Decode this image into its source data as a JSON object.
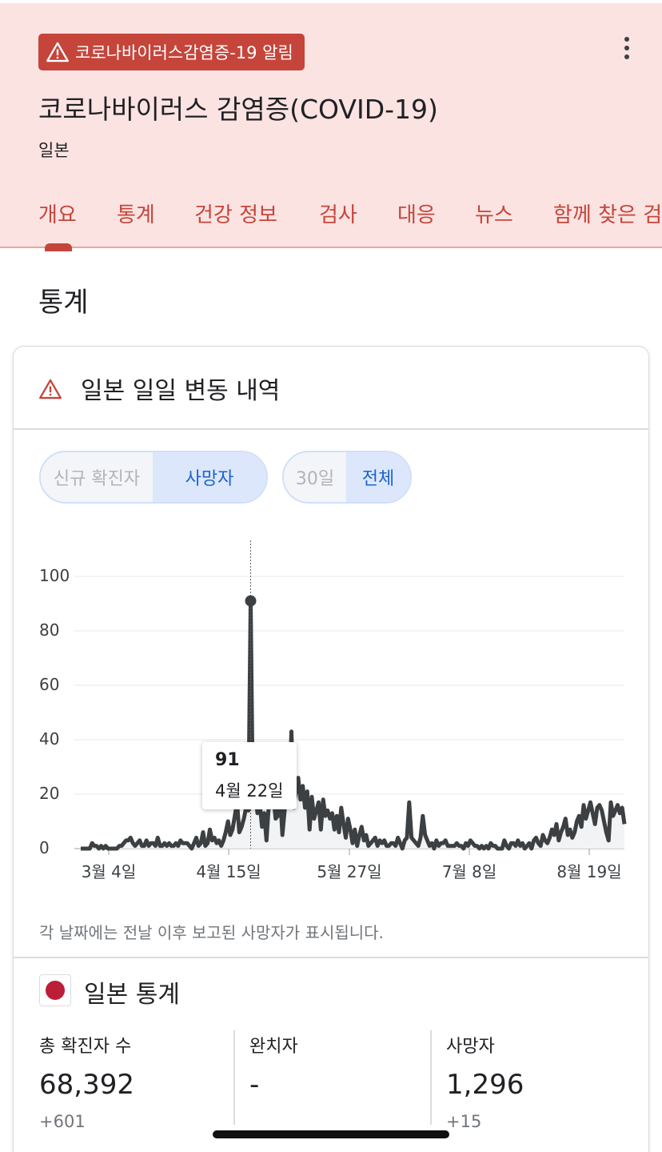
{
  "header": {
    "alert_label": "코로나바이러스감염증-19 알림",
    "title": "코로나바이러스 감염증(COVID-19)",
    "subtitle": "일본",
    "tabs": [
      "개요",
      "통계",
      "건강 정보",
      "검사",
      "대응",
      "뉴스",
      "함께 찾은 검색어"
    ]
  },
  "section_title": "통계",
  "card": {
    "title": "일본 일일 변동 내역",
    "metric_toggle": {
      "options": [
        "신규 확진자",
        "사망자"
      ],
      "selected": "사망자"
    },
    "range_toggle": {
      "options": [
        "30일",
        "전체"
      ],
      "selected": "전체"
    },
    "tooltip": {
      "value": "91",
      "date": "4월 22일"
    },
    "footnote": "각 날짜에는 전날 이후 보고된 사망자가 표시됩니다."
  },
  "stats": {
    "title": "일본 통계",
    "items": [
      {
        "label": "총 확진자 수",
        "value": "68,392",
        "delta": "+601"
      },
      {
        "label": "완치자",
        "value": "-",
        "delta": ""
      },
      {
        "label": "사망자",
        "value": "1,296",
        "delta": "+15"
      }
    ]
  },
  "colors": {
    "accent": "#c5453b",
    "header_bg": "#fbe3e2",
    "line": "#3c4043",
    "toggle_selected": "#1a62d2"
  },
  "chart_data": {
    "type": "line",
    "title": "",
    "xlabel": "",
    "ylabel": "",
    "ylim": [
      0,
      100
    ],
    "yticks": [
      0,
      20,
      40,
      60,
      80,
      100
    ],
    "xticks": [
      "3월 4일",
      "4월 15일",
      "5월 27일",
      "7월 8일",
      "8월 19일"
    ],
    "x_start": "2월 15일",
    "x_end": "8월 30일",
    "grid": true,
    "highlight": {
      "date": "4월 22일",
      "value": 91
    },
    "series": [
      {
        "values": [
          0,
          0,
          0,
          0,
          0,
          2,
          1,
          1,
          0,
          1,
          0,
          1,
          0,
          0,
          0,
          0,
          0,
          1,
          1,
          2,
          3,
          3,
          4,
          2,
          1,
          2,
          3,
          1,
          1,
          3,
          1,
          2,
          2,
          1,
          4,
          1,
          1,
          2,
          1,
          2,
          1,
          1,
          2,
          1,
          3,
          2,
          2,
          2,
          1,
          0,
          2,
          4,
          1,
          2,
          6,
          1,
          2,
          7,
          3,
          4,
          2,
          3,
          1,
          3,
          6,
          10,
          5,
          7,
          12,
          17,
          6,
          8,
          11,
          15,
          14,
          91,
          16,
          21,
          13,
          17,
          8,
          13,
          3,
          16,
          24,
          20,
          11,
          12,
          20,
          5,
          14,
          25,
          17,
          43,
          15,
          21,
          26,
          18,
          23,
          15,
          21,
          7,
          19,
          11,
          14,
          17,
          7,
          18,
          12,
          14,
          11,
          13,
          7,
          12,
          6,
          15,
          9,
          4,
          11,
          7,
          2,
          7,
          1,
          5,
          8,
          3,
          5,
          1,
          2,
          3,
          4,
          1,
          3,
          2,
          3,
          1,
          1,
          2,
          2,
          1,
          4,
          2,
          0,
          3,
          4,
          17,
          4,
          3,
          2,
          1,
          4,
          12,
          5,
          3,
          1,
          2,
          0,
          3,
          1,
          2,
          2,
          3,
          1,
          1,
          1,
          1,
          2,
          1,
          1,
          0,
          2,
          1,
          3,
          2,
          1,
          1,
          0,
          1,
          0,
          1,
          0,
          2,
          1,
          1,
          0,
          0,
          0,
          3,
          1,
          0,
          2,
          2,
          1,
          3,
          1,
          2,
          0,
          1,
          2,
          0,
          3,
          4,
          2,
          1,
          5,
          3,
          2,
          4,
          7,
          5,
          9,
          3,
          6,
          8,
          11,
          5,
          7,
          4,
          6,
          10,
          12,
          8,
          16,
          11,
          14,
          17,
          13,
          9,
          15,
          16,
          14,
          10,
          6,
          3,
          17,
          12,
          14,
          16,
          13,
          15,
          9
        ]
      }
    ]
  }
}
